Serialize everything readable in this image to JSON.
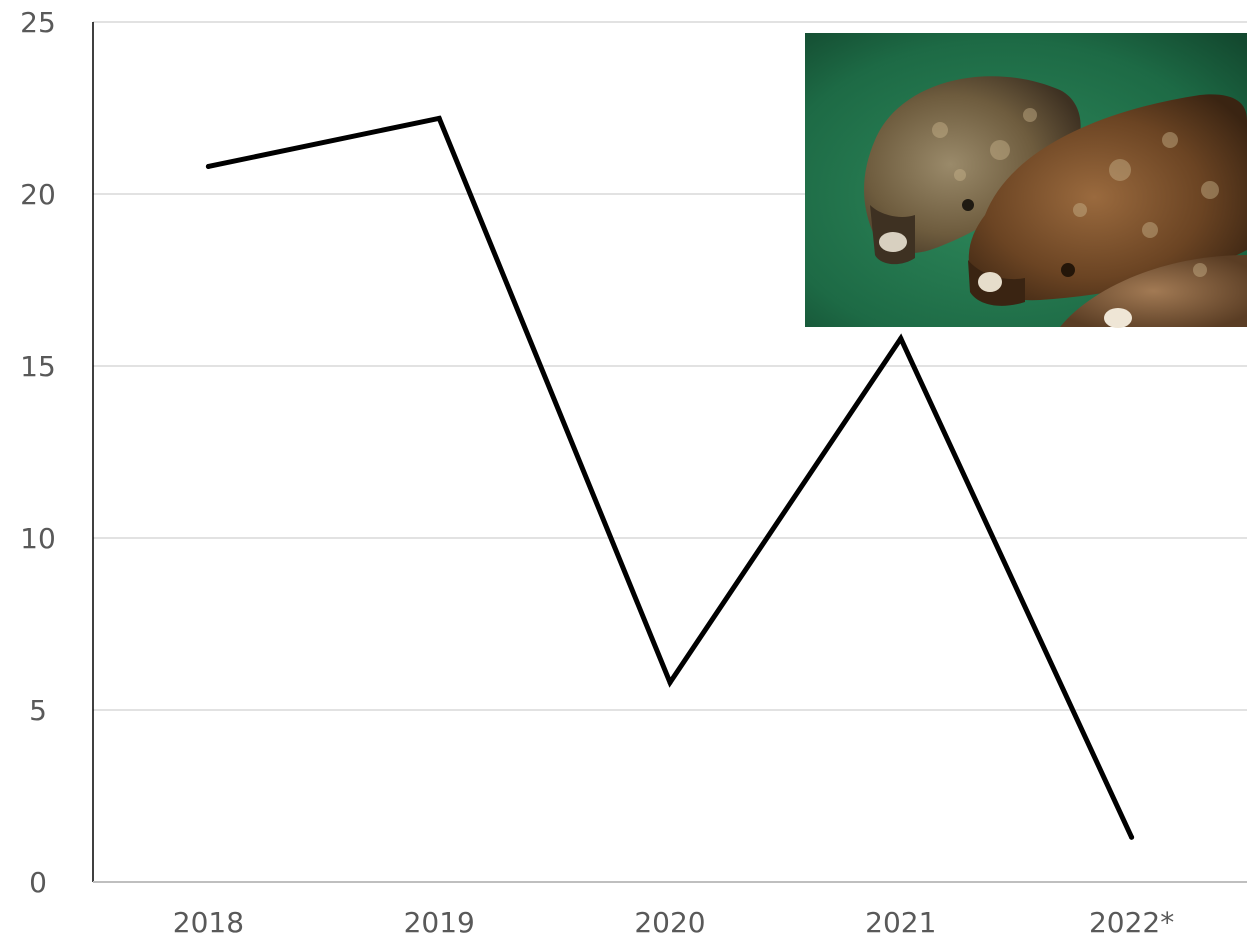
{
  "chart_data": {
    "type": "line",
    "categories": [
      "2018",
      "2019",
      "2020",
      "2021",
      "2022*"
    ],
    "series": [
      {
        "values": [
          20.8,
          22.2,
          5.8,
          15.8,
          1.3
        ],
        "color": "#000000"
      }
    ],
    "yticks": [
      "0",
      "5",
      "10",
      "15",
      "20",
      "25"
    ],
    "ylim": [
      0,
      25
    ],
    "grid": true,
    "legend": "none",
    "inset_image": "photo-of-halibut-fish-on-green-background"
  }
}
